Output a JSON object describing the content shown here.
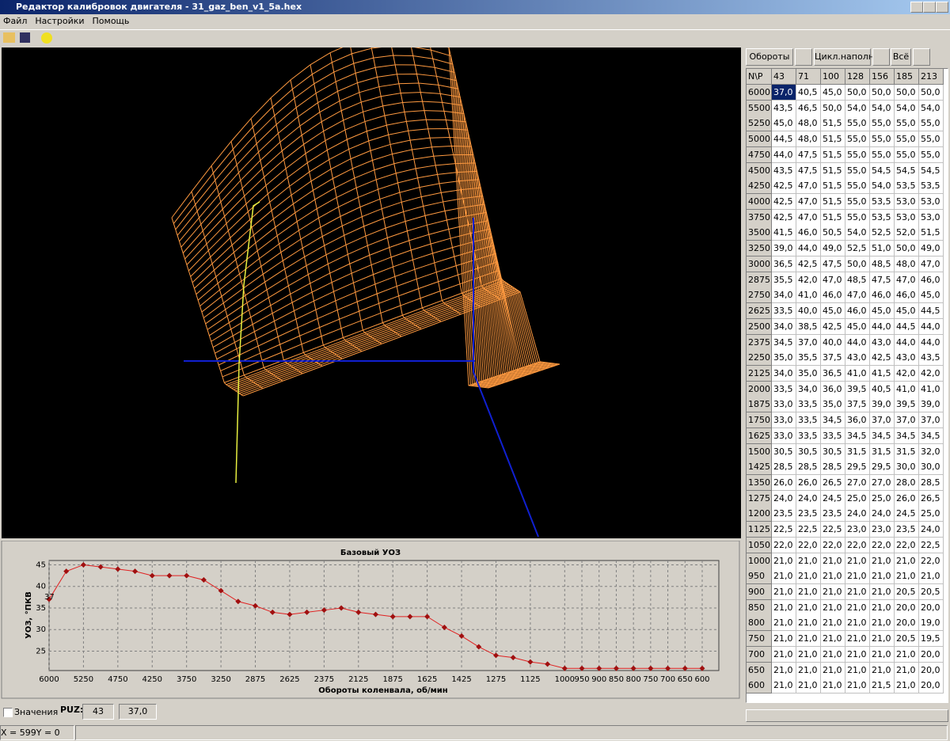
{
  "window": {
    "title": "Редактор калибровок двигателя - 31_gaz_ben_v1_5a.hex",
    "menu": [
      "Файл",
      "Настройки",
      "Помощь"
    ]
  },
  "chart_data": {
    "type": "line",
    "title": "Базовый УОЗ",
    "x_label": "Обороты коленвала, об/мин",
    "y_label": "УОЗ, °ПКВ",
    "categories": [
      "6000",
      null,
      "5250",
      null,
      "4750",
      null,
      "4250",
      null,
      "3750",
      null,
      "3250",
      null,
      "2875",
      null,
      "2625",
      null,
      "2375",
      null,
      "2125",
      null,
      "1875",
      null,
      "1625",
      null,
      "1425",
      null,
      "1275",
      null,
      "1125",
      null,
      "1000",
      "950",
      "900",
      "850",
      "800",
      "750",
      "700",
      "650",
      "600"
    ],
    "series": [
      {
        "name": "Базовый УОЗ",
        "color": "#e02020",
        "values": [
          37,
          43.5,
          45,
          44.5,
          44,
          43.5,
          42.5,
          42.5,
          42.5,
          41.5,
          39,
          36.5,
          35.5,
          34,
          33.5,
          34,
          34.5,
          35,
          34,
          33.5,
          33,
          33,
          33,
          30.5,
          28.5,
          26,
          24,
          23.5,
          22.5,
          22,
          21,
          21,
          21,
          21,
          21,
          21,
          21,
          21,
          21
        ]
      }
    ],
    "annotation": "37",
    "ylim": [
      20.5,
      46
    ],
    "yticks": [
      25,
      30,
      35,
      40,
      45
    ],
    "grid": true
  },
  "controls": {
    "buttons": [
      "Обороты",
      "Цикл.наполн.",
      "Всё"
    ],
    "values_checkbox": "Значения",
    "puz_label": "PUZ:",
    "puz_value": "43",
    "cell_value": "37,0"
  },
  "table": {
    "corner": "N\\P",
    "columns": [
      "43",
      "71",
      "100",
      "128",
      "156",
      "185",
      "213"
    ],
    "rows": [
      {
        "label": "6000",
        "cells": [
          "37,0",
          "40,5",
          "45,0",
          "50,0",
          "50,0",
          "50,0",
          "50,0"
        ]
      },
      {
        "label": "5500",
        "cells": [
          "43,5",
          "46,5",
          "50,0",
          "54,0",
          "54,0",
          "54,0",
          "54,0"
        ]
      },
      {
        "label": "5250",
        "cells": [
          "45,0",
          "48,0",
          "51,5",
          "55,0",
          "55,0",
          "55,0",
          "55,0"
        ]
      },
      {
        "label": "5000",
        "cells": [
          "44,5",
          "48,0",
          "51,5",
          "55,0",
          "55,0",
          "55,0",
          "55,0"
        ]
      },
      {
        "label": "4750",
        "cells": [
          "44,0",
          "47,5",
          "51,5",
          "55,0",
          "55,0",
          "55,0",
          "55,0"
        ]
      },
      {
        "label": "4500",
        "cells": [
          "43,5",
          "47,5",
          "51,5",
          "55,0",
          "54,5",
          "54,5",
          "54,5"
        ]
      },
      {
        "label": "4250",
        "cells": [
          "42,5",
          "47,0",
          "51,5",
          "55,0",
          "54,0",
          "53,5",
          "53,5"
        ]
      },
      {
        "label": "4000",
        "cells": [
          "42,5",
          "47,0",
          "51,5",
          "55,0",
          "53,5",
          "53,0",
          "53,0"
        ]
      },
      {
        "label": "3750",
        "cells": [
          "42,5",
          "47,0",
          "51,5",
          "55,0",
          "53,5",
          "53,0",
          "53,0"
        ]
      },
      {
        "label": "3500",
        "cells": [
          "41,5",
          "46,0",
          "50,5",
          "54,0",
          "52,5",
          "52,0",
          "51,5"
        ]
      },
      {
        "label": "3250",
        "cells": [
          "39,0",
          "44,0",
          "49,0",
          "52,5",
          "51,0",
          "50,0",
          "49,0"
        ]
      },
      {
        "label": "3000",
        "cells": [
          "36,5",
          "42,5",
          "47,5",
          "50,0",
          "48,5",
          "48,0",
          "47,0"
        ]
      },
      {
        "label": "2875",
        "cells": [
          "35,5",
          "42,0",
          "47,0",
          "48,5",
          "47,5",
          "47,0",
          "46,0"
        ]
      },
      {
        "label": "2750",
        "cells": [
          "34,0",
          "41,0",
          "46,0",
          "47,0",
          "46,0",
          "46,0",
          "45,0"
        ]
      },
      {
        "label": "2625",
        "cells": [
          "33,5",
          "40,0",
          "45,0",
          "46,0",
          "45,0",
          "45,0",
          "44,5"
        ]
      },
      {
        "label": "2500",
        "cells": [
          "34,0",
          "38,5",
          "42,5",
          "45,0",
          "44,0",
          "44,5",
          "44,0"
        ]
      },
      {
        "label": "2375",
        "cells": [
          "34,5",
          "37,0",
          "40,0",
          "44,0",
          "43,0",
          "44,0",
          "44,0"
        ]
      },
      {
        "label": "2250",
        "cells": [
          "35,0",
          "35,5",
          "37,5",
          "43,0",
          "42,5",
          "43,0",
          "43,5"
        ]
      },
      {
        "label": "2125",
        "cells": [
          "34,0",
          "35,0",
          "36,5",
          "41,0",
          "41,5",
          "42,0",
          "42,0"
        ]
      },
      {
        "label": "2000",
        "cells": [
          "33,5",
          "34,0",
          "36,0",
          "39,5",
          "40,5",
          "41,0",
          "41,0"
        ]
      },
      {
        "label": "1875",
        "cells": [
          "33,0",
          "33,5",
          "35,0",
          "37,5",
          "39,0",
          "39,5",
          "39,0"
        ]
      },
      {
        "label": "1750",
        "cells": [
          "33,0",
          "33,5",
          "34,5",
          "36,0",
          "37,0",
          "37,0",
          "37,0"
        ]
      },
      {
        "label": "1625",
        "cells": [
          "33,0",
          "33,5",
          "33,5",
          "34,5",
          "34,5",
          "34,5",
          "34,5"
        ]
      },
      {
        "label": "1500",
        "cells": [
          "30,5",
          "30,5",
          "30,5",
          "31,5",
          "31,5",
          "31,5",
          "32,0"
        ]
      },
      {
        "label": "1425",
        "cells": [
          "28,5",
          "28,5",
          "28,5",
          "29,5",
          "29,5",
          "30,0",
          "30,0"
        ]
      },
      {
        "label": "1350",
        "cells": [
          "26,0",
          "26,0",
          "26,5",
          "27,0",
          "27,0",
          "28,0",
          "28,5"
        ]
      },
      {
        "label": "1275",
        "cells": [
          "24,0",
          "24,0",
          "24,5",
          "25,0",
          "25,0",
          "26,0",
          "26,5"
        ]
      },
      {
        "label": "1200",
        "cells": [
          "23,5",
          "23,5",
          "23,5",
          "24,0",
          "24,0",
          "24,5",
          "25,0"
        ]
      },
      {
        "label": "1125",
        "cells": [
          "22,5",
          "22,5",
          "22,5",
          "23,0",
          "23,0",
          "23,5",
          "24,0"
        ]
      },
      {
        "label": "1050",
        "cells": [
          "22,0",
          "22,0",
          "22,0",
          "22,0",
          "22,0",
          "22,0",
          "22,5"
        ]
      },
      {
        "label": "1000",
        "cells": [
          "21,0",
          "21,0",
          "21,0",
          "21,0",
          "21,0",
          "21,0",
          "22,0"
        ]
      },
      {
        "label": "950",
        "cells": [
          "21,0",
          "21,0",
          "21,0",
          "21,0",
          "21,0",
          "21,0",
          "21,0"
        ]
      },
      {
        "label": "900",
        "cells": [
          "21,0",
          "21,0",
          "21,0",
          "21,0",
          "21,0",
          "20,5",
          "20,5"
        ]
      },
      {
        "label": "850",
        "cells": [
          "21,0",
          "21,0",
          "21,0",
          "21,0",
          "21,0",
          "20,0",
          "20,0"
        ]
      },
      {
        "label": "800",
        "cells": [
          "21,0",
          "21,0",
          "21,0",
          "21,0",
          "21,0",
          "20,0",
          "19,0"
        ]
      },
      {
        "label": "750",
        "cells": [
          "21,0",
          "21,0",
          "21,0",
          "21,0",
          "21,0",
          "20,5",
          "19,5"
        ]
      },
      {
        "label": "700",
        "cells": [
          "21,0",
          "21,0",
          "21,0",
          "21,0",
          "21,0",
          "21,0",
          "20,0"
        ]
      },
      {
        "label": "650",
        "cells": [
          "21,0",
          "21,0",
          "21,0",
          "21,0",
          "21,0",
          "21,0",
          "20,0"
        ]
      },
      {
        "label": "600",
        "cells": [
          "21,0",
          "21,0",
          "21,0",
          "21,0",
          "21,5",
          "21,0",
          "20,0"
        ]
      }
    ]
  },
  "status": "X = 599Y = 0"
}
